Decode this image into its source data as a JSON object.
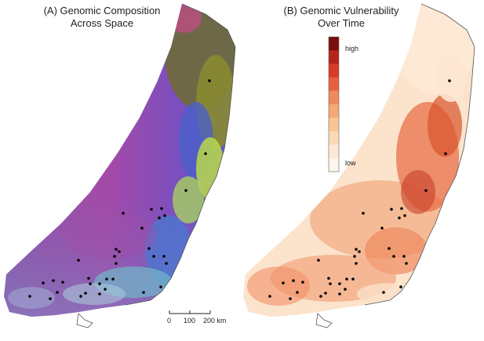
{
  "panel_a": {
    "title_line1": "(A) Genomic Composition",
    "title_line2": "Across Space"
  },
  "panel_b": {
    "title_line1": "(B) Genomic Vulnerability",
    "title_line2": "Over Time"
  },
  "legend": {
    "high_label": "high",
    "low_label": "low",
    "colors": [
      "#7a0c0c",
      "#b5231a",
      "#d73b2a",
      "#e8613f",
      "#f08a5a",
      "#f5a974",
      "#f8c594",
      "#fad8b4",
      "#fce8d4",
      "#fef5ec"
    ]
  },
  "scale_bar": {
    "labels": [
      "0",
      "100",
      "200 km"
    ]
  },
  "colors": {
    "panel_a_base": "#8a4fb0",
    "panel_a_magenta": "#b04aa8",
    "panel_a_blue": "#4a6fd0",
    "panel_a_green": "#b8d84a",
    "panel_a_olive": "#7a7a2a",
    "panel_b_base": "#f7c9a4",
    "panel_b_dark": "#d9542e",
    "coastline": "#555555",
    "sample_point": "#000000"
  },
  "sample_points": [
    [
      267,
      103
    ],
    [
      262,
      196
    ],
    [
      237,
      243
    ],
    [
      157,
      272
    ],
    [
      193,
      267
    ],
    [
      206,
      266
    ],
    [
      210,
      275
    ],
    [
      203,
      278
    ],
    [
      181,
      291
    ],
    [
      148,
      318
    ],
    [
      152,
      321
    ],
    [
      146,
      327
    ],
    [
      190,
      317
    ],
    [
      196,
      327
    ],
    [
      209,
      327
    ],
    [
      148,
      336
    ],
    [
      100,
      332
    ],
    [
      55,
      361
    ],
    [
      68,
      358
    ],
    [
      80,
      360
    ],
    [
      113,
      355
    ],
    [
      127,
      362
    ],
    [
      136,
      356
    ],
    [
      144,
      356
    ],
    [
      115,
      362
    ],
    [
      38,
      378
    ],
    [
      64,
      381
    ],
    [
      73,
      373
    ],
    [
      103,
      378
    ],
    [
      109,
      374
    ],
    [
      127,
      375
    ],
    [
      134,
      369
    ],
    [
      183,
      373
    ],
    [
      205,
      366
    ],
    [
      212,
      336
    ]
  ]
}
